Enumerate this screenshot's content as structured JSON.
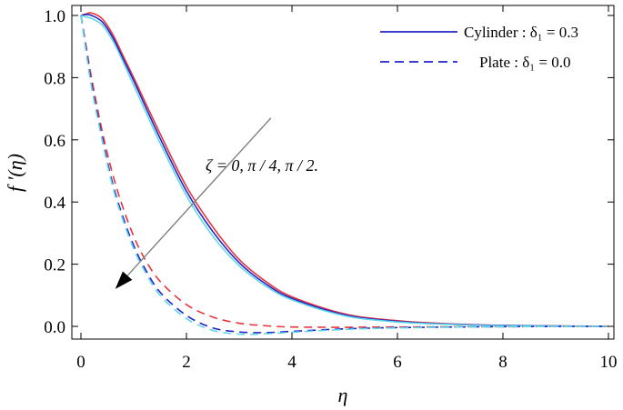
{
  "chart_data": {
    "type": "line",
    "xlabel": "η",
    "ylabel": "f '(η)",
    "xlim": [
      0,
      10
    ],
    "ylim": [
      -0.04,
      1.04
    ],
    "xticks": [
      0,
      2,
      4,
      6,
      8,
      10
    ],
    "yticks": [
      0.0,
      0.2,
      0.4,
      0.6,
      0.8,
      1.0
    ],
    "xtick_labels": [
      "0",
      "2",
      "4",
      "6",
      "8",
      "10"
    ],
    "ytick_labels": [
      "0.0",
      "0.2",
      "0.4",
      "0.6",
      "0.8",
      "1.0"
    ],
    "grid": false,
    "legend_position": "top-right",
    "legend": [
      {
        "label": "Cylinder : δ₁ = 0.3",
        "style": "solid",
        "color": "#2323c8"
      },
      {
        "label": "Plate : δ₁ = 0.0",
        "style": "dashed",
        "color": "#2323c8"
      }
    ],
    "annotation": {
      "text": "ζ = 0, π / 4, π / 2.",
      "arrow_from": [
        3.6,
        0.67
      ],
      "arrow_to": [
        0.65,
        0.12
      ]
    },
    "series": [
      {
        "group": "cylinder",
        "color": "#e8343c",
        "style": "solid",
        "x": [
          0,
          0.1,
          0.2,
          0.4,
          0.6,
          0.8,
          1.0,
          1.5,
          2.0,
          2.5,
          3.0,
          3.5,
          4.0,
          5.0,
          6.0,
          7.0,
          8.0,
          10.0
        ],
        "y": [
          1.0,
          1.005,
          1.008,
          0.99,
          0.94,
          0.87,
          0.8,
          0.62,
          0.45,
          0.32,
          0.215,
          0.145,
          0.095,
          0.04,
          0.018,
          0.008,
          0.003,
          0.0
        ]
      },
      {
        "group": "cylinder",
        "color": "#2323c8",
        "style": "solid",
        "x": [
          0,
          0.1,
          0.2,
          0.4,
          0.6,
          0.8,
          1.0,
          1.5,
          2.0,
          2.5,
          3.0,
          3.5,
          4.0,
          5.0,
          6.0,
          7.0,
          8.0,
          10.0
        ],
        "y": [
          1.0,
          1.003,
          1.0,
          0.98,
          0.93,
          0.86,
          0.79,
          0.605,
          0.435,
          0.305,
          0.205,
          0.137,
          0.09,
          0.037,
          0.016,
          0.007,
          0.003,
          0.0
        ]
      },
      {
        "group": "cylinder",
        "color": "#5fd8e8",
        "style": "solid",
        "x": [
          0,
          0.1,
          0.2,
          0.4,
          0.6,
          0.8,
          1.0,
          1.5,
          2.0,
          2.5,
          3.0,
          3.5,
          4.0,
          5.0,
          6.0,
          7.0,
          8.0,
          10.0
        ],
        "y": [
          1.0,
          0.995,
          0.99,
          0.97,
          0.92,
          0.85,
          0.775,
          0.59,
          0.42,
          0.29,
          0.195,
          0.13,
          0.085,
          0.034,
          0.014,
          0.006,
          0.002,
          0.0
        ]
      },
      {
        "group": "plate",
        "color": "#e8343c",
        "style": "dashed",
        "x": [
          0,
          0.1,
          0.2,
          0.4,
          0.6,
          0.8,
          1.0,
          1.2,
          1.5,
          2.0,
          2.5,
          3.0,
          3.5,
          4.0,
          5.0,
          6.0,
          8.0,
          10.0
        ],
        "y": [
          1.0,
          0.9,
          0.8,
          0.63,
          0.49,
          0.38,
          0.29,
          0.22,
          0.145,
          0.07,
          0.03,
          0.01,
          0.002,
          -0.002,
          -0.003,
          -0.002,
          -0.001,
          0.0
        ]
      },
      {
        "group": "plate",
        "color": "#2323c8",
        "style": "dashed",
        "x": [
          0,
          0.1,
          0.2,
          0.4,
          0.6,
          0.8,
          1.0,
          1.2,
          1.5,
          2.0,
          2.5,
          3.0,
          3.5,
          4.0,
          5.0,
          6.0,
          8.0,
          10.0
        ],
        "y": [
          1.0,
          0.89,
          0.78,
          0.61,
          0.46,
          0.35,
          0.26,
          0.19,
          0.11,
          0.035,
          -0.005,
          -0.018,
          -0.02,
          -0.016,
          -0.008,
          -0.004,
          -0.001,
          0.0
        ]
      },
      {
        "group": "plate",
        "color": "#5fd8e8",
        "style": "dashed",
        "x": [
          0,
          0.1,
          0.2,
          0.4,
          0.6,
          0.8,
          1.0,
          1.2,
          1.5,
          2.0,
          2.5,
          3.0,
          3.5,
          4.0,
          5.0,
          6.0,
          8.0,
          10.0
        ],
        "y": [
          1.0,
          0.88,
          0.77,
          0.6,
          0.45,
          0.34,
          0.25,
          0.18,
          0.1,
          0.025,
          -0.013,
          -0.025,
          -0.024,
          -0.019,
          -0.01,
          -0.005,
          -0.001,
          0.0
        ]
      }
    ]
  }
}
